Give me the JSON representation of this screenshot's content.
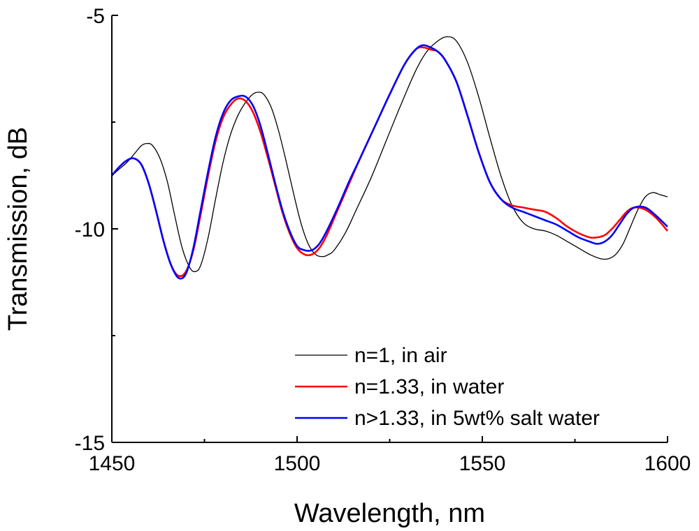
{
  "chart_data": {
    "type": "line",
    "title": "",
    "xlabel": "Wavelength, nm",
    "ylabel": "Transmission, dB",
    "xlim": [
      1450,
      1600
    ],
    "ylim": [
      -15,
      -5
    ],
    "x_ticks": [
      {
        "value": 1450,
        "label": "1450"
      },
      {
        "value": 1500,
        "label": "1500"
      },
      {
        "value": 1550,
        "label": "1550"
      },
      {
        "value": 1600,
        "label": "1600"
      }
    ],
    "y_ticks": [
      {
        "value": -5,
        "label": "-5"
      },
      {
        "value": -10,
        "label": "-10"
      },
      {
        "value": -15,
        "label": "-15"
      }
    ],
    "grid": false,
    "legend_position": "bottom-right",
    "series": [
      {
        "name": "n=1, in air",
        "color": "#000000",
        "x": [
          1450,
          1452,
          1454,
          1456,
          1458,
          1459.5,
          1461,
          1463,
          1465,
          1467,
          1469,
          1471,
          1472.5,
          1474,
          1476,
          1478,
          1480,
          1482,
          1484,
          1486,
          1488,
          1489.5,
          1491,
          1493,
          1495,
          1497,
          1499,
          1501,
          1503,
          1505,
          1507,
          1508.5,
          1510,
          1513,
          1516,
          1520,
          1524,
          1528,
          1532,
          1535,
          1538,
          1540.5,
          1543,
          1546,
          1549,
          1552,
          1555,
          1558,
          1561,
          1564,
          1567,
          1570,
          1573,
          1576,
          1579,
          1582,
          1584,
          1586,
          1588,
          1590,
          1592,
          1594,
          1596,
          1598,
          1600
        ],
        "values": [
          -8.75,
          -8.6,
          -8.45,
          -8.25,
          -8.05,
          -8.0,
          -8.05,
          -8.35,
          -8.9,
          -9.7,
          -10.45,
          -10.9,
          -11.0,
          -10.85,
          -10.2,
          -9.3,
          -8.45,
          -7.8,
          -7.35,
          -7.05,
          -6.85,
          -6.8,
          -6.85,
          -7.15,
          -7.7,
          -8.4,
          -9.15,
          -9.85,
          -10.35,
          -10.6,
          -10.65,
          -10.6,
          -10.5,
          -10.1,
          -9.55,
          -8.8,
          -7.95,
          -7.1,
          -6.3,
          -5.85,
          -5.6,
          -5.5,
          -5.6,
          -6.1,
          -6.9,
          -7.85,
          -8.75,
          -9.45,
          -9.85,
          -10.0,
          -10.05,
          -10.15,
          -10.3,
          -10.45,
          -10.6,
          -10.7,
          -10.7,
          -10.6,
          -10.35,
          -9.95,
          -9.55,
          -9.25,
          -9.15,
          -9.2,
          -9.25
        ]
      },
      {
        "name": "n=1.33, in water",
        "color": "#ff0000",
        "x": [
          1450,
          1452,
          1454,
          1456,
          1458,
          1460,
          1462,
          1464,
          1466,
          1468,
          1470,
          1472,
          1474,
          1476,
          1478,
          1480,
          1482,
          1484,
          1486,
          1488,
          1490,
          1492,
          1494,
          1496,
          1498,
          1500,
          1502,
          1504,
          1506,
          1508,
          1511,
          1514,
          1517,
          1521,
          1525,
          1529,
          1532,
          1534,
          1536,
          1538,
          1540,
          1543,
          1546,
          1549,
          1552,
          1555,
          1558,
          1561,
          1564,
          1567,
          1570,
          1573,
          1576,
          1579,
          1581,
          1583,
          1585,
          1587,
          1589,
          1591,
          1594,
          1597,
          1600
        ],
        "values": [
          -8.75,
          -8.55,
          -8.4,
          -8.35,
          -8.5,
          -8.95,
          -9.6,
          -10.3,
          -10.85,
          -11.1,
          -11.0,
          -10.5,
          -9.65,
          -8.75,
          -7.95,
          -7.4,
          -7.1,
          -6.95,
          -7.0,
          -7.25,
          -7.7,
          -8.3,
          -8.95,
          -9.6,
          -10.1,
          -10.45,
          -10.6,
          -10.6,
          -10.45,
          -10.15,
          -9.55,
          -8.95,
          -8.35,
          -7.6,
          -6.85,
          -6.15,
          -5.8,
          -5.75,
          -5.8,
          -5.85,
          -6.05,
          -6.55,
          -7.35,
          -8.2,
          -8.9,
          -9.3,
          -9.45,
          -9.5,
          -9.55,
          -9.6,
          -9.75,
          -9.95,
          -10.1,
          -10.2,
          -10.2,
          -10.15,
          -10.0,
          -9.8,
          -9.6,
          -9.5,
          -9.55,
          -9.75,
          -10.05
        ]
      },
      {
        "name": "n>1.33, in 5wt% salt water",
        "color": "#0000ff",
        "x": [
          1450,
          1452,
          1454,
          1456,
          1458,
          1460,
          1462,
          1464,
          1466,
          1468,
          1470,
          1472,
          1474,
          1476,
          1478,
          1480,
          1482,
          1484,
          1486,
          1488,
          1490,
          1492,
          1494,
          1496,
          1498,
          1500,
          1502,
          1504,
          1506,
          1508,
          1511,
          1514,
          1517,
          1521,
          1525,
          1529,
          1532,
          1534,
          1536,
          1538,
          1540,
          1543,
          1546,
          1549,
          1552,
          1555,
          1558,
          1561,
          1564,
          1567,
          1570,
          1573,
          1576,
          1579,
          1581,
          1583,
          1585,
          1587,
          1589,
          1591,
          1594,
          1597,
          1600
        ],
        "values": [
          -8.75,
          -8.55,
          -8.4,
          -8.35,
          -8.5,
          -8.95,
          -9.6,
          -10.3,
          -10.85,
          -11.15,
          -11.05,
          -10.45,
          -9.55,
          -8.65,
          -7.85,
          -7.3,
          -7.0,
          -6.9,
          -6.9,
          -7.1,
          -7.55,
          -8.2,
          -8.9,
          -9.55,
          -10.05,
          -10.4,
          -10.5,
          -10.5,
          -10.35,
          -10.05,
          -9.5,
          -8.9,
          -8.35,
          -7.6,
          -6.85,
          -6.15,
          -5.8,
          -5.7,
          -5.75,
          -5.85,
          -6.05,
          -6.55,
          -7.35,
          -8.2,
          -8.9,
          -9.3,
          -9.5,
          -9.6,
          -9.7,
          -9.8,
          -9.9,
          -10.05,
          -10.2,
          -10.3,
          -10.35,
          -10.3,
          -10.15,
          -9.9,
          -9.65,
          -9.5,
          -9.5,
          -9.7,
          -9.95
        ]
      }
    ]
  }
}
